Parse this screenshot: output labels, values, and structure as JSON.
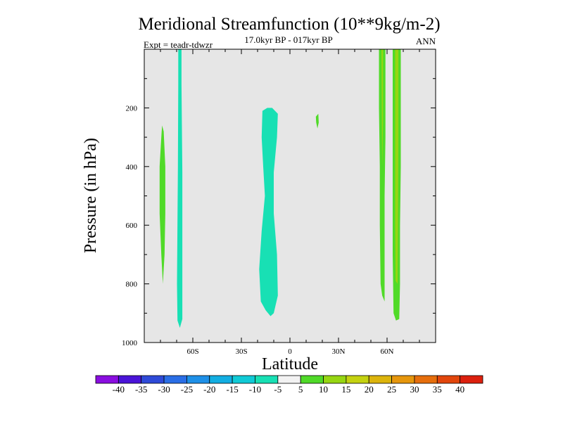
{
  "chart_data": {
    "type": "contour",
    "title": "Meridional Streamfunction (10**9kg/m-2)",
    "subtitle": "17.0kyr BP - 017kyr BP",
    "left_string": "Expt = teadr-tdwzr",
    "right_string": "ANN",
    "xlabel": "Latitude",
    "ylabel": "Pressure (in hPa)",
    "xlim": [
      -90,
      90
    ],
    "ylim": [
      1000,
      0
    ],
    "x_ticks": [
      {
        "value": -60,
        "label": "60S"
      },
      {
        "value": -30,
        "label": "30S"
      },
      {
        "value": 0,
        "label": "0"
      },
      {
        "value": 30,
        "label": "30N"
      },
      {
        "value": 60,
        "label": "60N"
      }
    ],
    "y_ticks": [
      {
        "value": 200,
        "label": "200"
      },
      {
        "value": 400,
        "label": "400"
      },
      {
        "value": 600,
        "label": "600"
      },
      {
        "value": 800,
        "label": "800"
      },
      {
        "value": 1000,
        "label": "1000"
      }
    ],
    "background_color": "#e6e6e6",
    "colorbar": {
      "levels": [
        "-40",
        "-35",
        "-30",
        "-25",
        "-20",
        "-15",
        "-10",
        "-5",
        "5",
        "10",
        "15",
        "20",
        "25",
        "30",
        "35",
        "40"
      ],
      "colors": [
        "#8a0ee0",
        "#4a14d8",
        "#2e4ad8",
        "#2a6ee6",
        "#1e90e8",
        "#12aee2",
        "#10cad6",
        "#18e0b4",
        "#f2f2f2",
        "#50da28",
        "#96d612",
        "#c4d210",
        "#dcb40c",
        "#e6960c",
        "#e66e0c",
        "#e2460c",
        "#dc200e"
      ]
    },
    "regions": [
      {
        "name": "negative-cell-southern-pole-column",
        "range": "-10 to -5",
        "color": "#18e0b4",
        "outline": [
          [
            -69.0,
            0
          ],
          [
            -67.0,
            0
          ],
          [
            -67.0,
            120
          ],
          [
            -66.5,
            420
          ],
          [
            -66.5,
            800
          ],
          [
            -66.5,
            920
          ],
          [
            -68.0,
            950
          ],
          [
            -69.5,
            925
          ],
          [
            -69.8,
            800
          ],
          [
            -69.2,
            400
          ],
          [
            -69.0,
            120
          ]
        ]
      },
      {
        "name": "negative-cell-tropical-south",
        "range": "-10 to -5",
        "color": "#18e0b4",
        "outline": [
          [
            -17.0,
            210
          ],
          [
            -14.0,
            200
          ],
          [
            -11.0,
            200
          ],
          [
            -7.5,
            220
          ],
          [
            -8.0,
            300
          ],
          [
            -10.0,
            420
          ],
          [
            -10.0,
            560
          ],
          [
            -8.0,
            700
          ],
          [
            -7.5,
            840
          ],
          [
            -10.0,
            900
          ],
          [
            -12.0,
            910
          ],
          [
            -15.0,
            890
          ],
          [
            -18.0,
            860
          ],
          [
            -19.0,
            750
          ],
          [
            -17.5,
            620
          ],
          [
            -15.5,
            500
          ],
          [
            -16.5,
            400
          ],
          [
            -17.5,
            300
          ]
        ]
      },
      {
        "name": "positive-cell-southern-midlat",
        "range": "5 to 10",
        "color": "#50da28",
        "outline": [
          [
            -79.0,
            260
          ],
          [
            -78.0,
            280
          ],
          [
            -77.0,
            400
          ],
          [
            -77.0,
            560
          ],
          [
            -77.5,
            700
          ],
          [
            -78.5,
            800
          ],
          [
            -79.5,
            700
          ],
          [
            -80.5,
            560
          ],
          [
            -80.5,
            400
          ],
          [
            -79.5,
            300
          ]
        ]
      },
      {
        "name": "positive-cell-tropical-north-speck",
        "range": "5 to 10",
        "color": "#50da28",
        "outline": [
          [
            16.0,
            230
          ],
          [
            17.5,
            220
          ],
          [
            17.8,
            250
          ],
          [
            17.0,
            270
          ],
          [
            16.2,
            250
          ]
        ]
      },
      {
        "name": "positive-cell-northern-60n-west",
        "range": "5 to 10",
        "color": "#50da28",
        "outline": [
          [
            55.0,
            0
          ],
          [
            59.0,
            0
          ],
          [
            59.0,
            300
          ],
          [
            58.5,
            500
          ],
          [
            58.5,
            700
          ],
          [
            58.5,
            860
          ],
          [
            57.0,
            840
          ],
          [
            56.0,
            800
          ],
          [
            55.5,
            600
          ],
          [
            55.5,
            400
          ],
          [
            55.0,
            200
          ]
        ]
      },
      {
        "name": "positive-cell-northern-60n-east",
        "range": "5 to 15",
        "color": "#50da28",
        "outline": [
          [
            63.5,
            0
          ],
          [
            68.5,
            0
          ],
          [
            68.5,
            200
          ],
          [
            68.5,
            400
          ],
          [
            68.0,
            600
          ],
          [
            68.0,
            800
          ],
          [
            67.5,
            920
          ],
          [
            65.5,
            925
          ],
          [
            64.0,
            900
          ],
          [
            63.5,
            700
          ],
          [
            63.5,
            400
          ],
          [
            63.5,
            200
          ]
        ]
      },
      {
        "name": "positive-cell-northern-60n-core",
        "range": "10 to 15",
        "color": "#96d612",
        "outline": [
          [
            65.0,
            0
          ],
          [
            67.0,
            0
          ],
          [
            67.0,
            300
          ],
          [
            66.8,
            600
          ],
          [
            66.5,
            800
          ],
          [
            65.3,
            790
          ],
          [
            65.0,
            600
          ],
          [
            65.0,
            300
          ]
        ]
      },
      {
        "name": "positive-cell-northern-60n-west-core",
        "range": "10 to 15",
        "color": "#96d612",
        "outline": [
          [
            56.5,
            0
          ],
          [
            57.5,
            0
          ],
          [
            57.5,
            250
          ],
          [
            57.0,
            400
          ],
          [
            56.8,
            250
          ]
        ]
      }
    ]
  }
}
